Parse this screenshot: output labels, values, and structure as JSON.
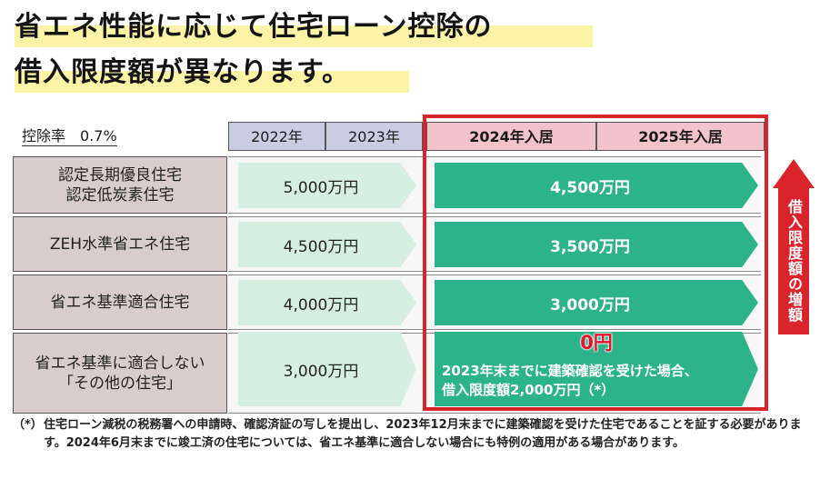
{
  "title": {
    "line1": "省エネ性能に応じて住宅ローン控除の",
    "line2": "借入限度額が異なります。"
  },
  "rate_label": "控除率　0.7%",
  "headers": {
    "y2022": "2022年",
    "y2023": "2023年",
    "y2024": "2024年入居",
    "y2025": "2025年入居"
  },
  "rows": [
    {
      "label_lines": [
        "認定長期優良住宅",
        "認定低炭素住宅"
      ],
      "before": "5,000万円",
      "after": "4,500万円"
    },
    {
      "label_lines": [
        "ZEH水準省エネ住宅"
      ],
      "before": "4,500万円",
      "after": "3,500万円"
    },
    {
      "label_lines": [
        "省エネ基準適合住宅"
      ],
      "before": "4,000万円",
      "after": "3,000万円"
    },
    {
      "label_lines": [
        "省エネ基準に適合しない",
        "「その他の住宅」"
      ],
      "before": "3,000万円",
      "after": "0円"
    }
  ],
  "other_note": {
    "line1": "2023年末までに建築確認を受けた場合、",
    "line2": "借入限度額2,000万円（*）"
  },
  "side_label": "借入限度額の増額",
  "footnote": {
    "mark": "（*）",
    "text": "住宅ローン減税の税務署への申請時、確認済証の写しを提出し、2023年12月末までに建築確認を受けた住宅であることを証する必要があります。2024年6月末までに竣工済の住宅については、省エネ基準に適合しない場合にも特例の適用がある場合があります。"
  },
  "colors": {
    "highlight": "#fbf3a6",
    "label_bg": "#d8cccc",
    "header_blue": "#c9cde3",
    "header_pink": "#f3c3cc",
    "arrow_light": "#d5efe3",
    "arrow_dark": "#2db38a",
    "frame_red": "#d9242c",
    "zero_red": "#e8112d"
  },
  "icons": {
    "side_arrow": "up-arrow-icon"
  }
}
